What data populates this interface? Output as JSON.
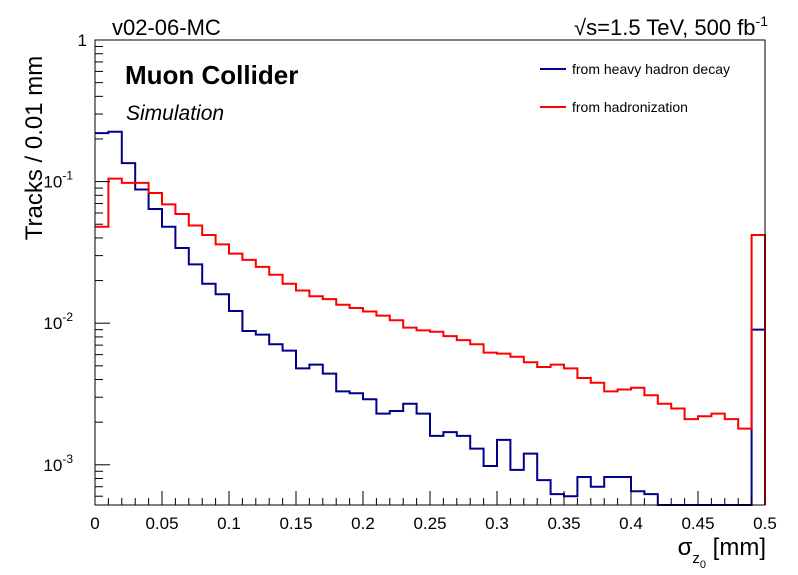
{
  "header": {
    "left_label": "v02-06-MC",
    "right_label": "√s=1.5 TeV, 500 fb",
    "right_label_sup": "-1"
  },
  "overlay": {
    "collaboration": "Muon Collider",
    "status": "Simulation"
  },
  "axes": {
    "ylabel": "Tracks / 0.01 mm",
    "xlabel_main": "σ",
    "xlabel_sub": "z",
    "xlabel_subsub": "0",
    "xlabel_unit": " [mm]",
    "x_ticks": [
      "0",
      "0.05",
      "0.1",
      "0.15",
      "0.2",
      "0.25",
      "0.3",
      "0.35",
      "0.4",
      "0.45",
      "0.5"
    ],
    "y_ticks": [
      {
        "base": "10",
        "exp": "-3"
      },
      {
        "base": "10",
        "exp": "-2"
      },
      {
        "base": "10",
        "exp": "-1"
      },
      {
        "base": "1",
        "exp": ""
      }
    ]
  },
  "chart_data": {
    "type": "line",
    "step": true,
    "xlim": [
      0,
      0.5
    ],
    "ylim": [
      0.00052,
      1
    ],
    "ylog": true,
    "grid": false,
    "legend_position": "top-right",
    "bin_edges_start": 0,
    "bin_width": 0.01,
    "series": [
      {
        "name": "from heavy hadron decay",
        "color": "#00008b",
        "values": [
          0.22,
          0.225,
          0.135,
          0.088,
          0.064,
          0.048,
          0.034,
          0.026,
          0.019,
          0.016,
          0.0122,
          0.0088,
          0.0083,
          0.0071,
          0.0064,
          0.0048,
          0.0051,
          0.0044,
          0.0033,
          0.0032,
          0.0029,
          0.0023,
          0.0024,
          0.0027,
          0.0023,
          0.0016,
          0.0017,
          0.0016,
          0.0013,
          0.00098,
          0.0015,
          0.00092,
          0.0012,
          0.00078,
          0.00062,
          0.0006,
          0.00082,
          0.0007,
          0.00082,
          0.00082,
          0.00065,
          0.00062,
          0.0005,
          0.0005,
          0.0005,
          0.0005,
          0.0005,
          0.0005,
          0.0005,
          0.009
        ]
      },
      {
        "name": "from hadronization",
        "color": "#ff0000",
        "values": [
          0.048,
          0.105,
          0.098,
          0.098,
          0.083,
          0.069,
          0.059,
          0.049,
          0.042,
          0.036,
          0.031,
          0.028,
          0.025,
          0.022,
          0.019,
          0.017,
          0.0155,
          0.0148,
          0.0135,
          0.0128,
          0.0121,
          0.0113,
          0.0105,
          0.0093,
          0.0089,
          0.0087,
          0.0081,
          0.0076,
          0.0071,
          0.0062,
          0.0061,
          0.0058,
          0.0053,
          0.0049,
          0.0051,
          0.0048,
          0.0041,
          0.0038,
          0.0033,
          0.0034,
          0.0035,
          0.0031,
          0.0027,
          0.0025,
          0.0021,
          0.0022,
          0.0023,
          0.0021,
          0.0018,
          0.042
        ]
      }
    ]
  }
}
